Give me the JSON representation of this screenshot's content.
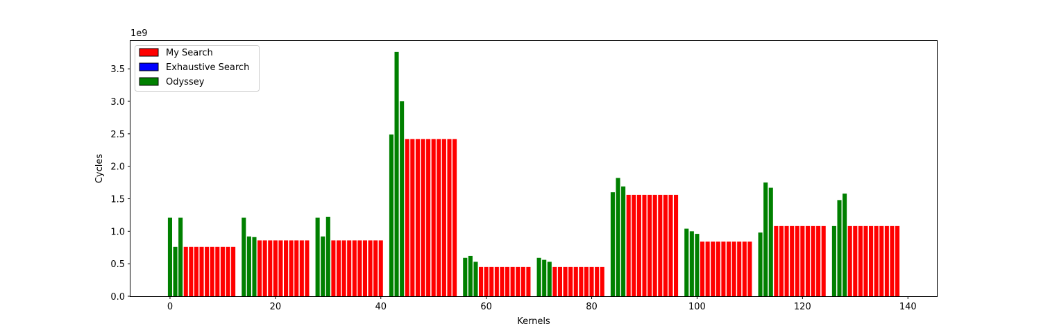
{
  "chart_data": {
    "type": "bar",
    "title": "",
    "xlabel": "Kernels",
    "ylabel": "Cycles",
    "y_offset_text": "1e9",
    "xlim": [
      -7.5,
      145.5
    ],
    "ylim": [
      0,
      3.94
    ],
    "x_ticks": [
      0,
      20,
      40,
      60,
      80,
      100,
      120,
      140
    ],
    "y_ticks": [
      0.0,
      0.5,
      1.0,
      1.5,
      2.0,
      2.5,
      3.0,
      3.5
    ],
    "x_tick_labels": [
      "0",
      "20",
      "40",
      "60",
      "80",
      "100",
      "120",
      "140"
    ],
    "y_tick_labels": [
      "0.0",
      "0.5",
      "1.0",
      "1.5",
      "2.0",
      "2.5",
      "3.0",
      "3.5"
    ],
    "grid": false,
    "legend_position": "top-left",
    "series": [
      {
        "name": "My Search",
        "color": "#ff0000",
        "x": [
          3,
          4,
          5,
          6,
          7,
          8,
          9,
          10,
          11,
          12,
          17,
          18,
          19,
          20,
          21,
          22,
          23,
          24,
          25,
          26,
          31,
          32,
          33,
          34,
          35,
          36,
          37,
          38,
          39,
          40,
          45,
          46,
          47,
          48,
          49,
          50,
          51,
          52,
          53,
          54,
          59,
          60,
          61,
          62,
          63,
          64,
          65,
          66,
          67,
          68,
          73,
          74,
          75,
          76,
          77,
          78,
          79,
          80,
          81,
          82,
          87,
          88,
          89,
          90,
          91,
          92,
          93,
          94,
          95,
          96,
          101,
          102,
          103,
          104,
          105,
          106,
          107,
          108,
          109,
          110,
          115,
          116,
          117,
          118,
          119,
          120,
          121,
          122,
          123,
          124,
          129,
          130,
          131,
          132,
          133,
          134,
          135,
          136,
          137,
          138
        ],
        "values": [
          0.76,
          0.76,
          0.76,
          0.76,
          0.76,
          0.76,
          0.76,
          0.76,
          0.76,
          0.76,
          0.86,
          0.86,
          0.86,
          0.86,
          0.86,
          0.86,
          0.86,
          0.86,
          0.86,
          0.86,
          0.86,
          0.86,
          0.86,
          0.86,
          0.86,
          0.86,
          0.86,
          0.86,
          0.86,
          0.86,
          2.42,
          2.42,
          2.42,
          2.42,
          2.42,
          2.42,
          2.42,
          2.42,
          2.42,
          2.42,
          0.45,
          0.45,
          0.45,
          0.45,
          0.45,
          0.45,
          0.45,
          0.45,
          0.45,
          0.45,
          0.45,
          0.45,
          0.45,
          0.45,
          0.45,
          0.45,
          0.45,
          0.45,
          0.45,
          0.45,
          1.56,
          1.56,
          1.56,
          1.56,
          1.56,
          1.56,
          1.56,
          1.56,
          1.56,
          1.56,
          0.84,
          0.84,
          0.84,
          0.84,
          0.84,
          0.84,
          0.84,
          0.84,
          0.84,
          0.84,
          1.08,
          1.08,
          1.08,
          1.08,
          1.08,
          1.08,
          1.08,
          1.08,
          1.08,
          1.08,
          1.08,
          1.08,
          1.08,
          1.08,
          1.08,
          1.08,
          1.08,
          1.08,
          1.08,
          1.08
        ]
      },
      {
        "name": "Exhaustive Search",
        "color": "#0000ff",
        "x": [],
        "values": []
      },
      {
        "name": "Odyssey",
        "color": "#008000",
        "x": [
          0,
          1,
          2,
          14,
          15,
          16,
          28,
          29,
          30,
          42,
          43,
          44,
          56,
          57,
          58,
          70,
          71,
          72,
          84,
          85,
          86,
          98,
          99,
          100,
          112,
          113,
          114,
          126,
          127,
          128
        ],
        "values": [
          1.21,
          0.76,
          1.21,
          1.21,
          0.92,
          0.91,
          1.21,
          0.92,
          1.22,
          2.49,
          3.76,
          3.0,
          0.59,
          0.62,
          0.53,
          0.59,
          0.56,
          0.53,
          1.6,
          1.82,
          1.69,
          1.04,
          1.0,
          0.96,
          0.98,
          1.75,
          1.67,
          1.08,
          1.48,
          1.58
        ]
      }
    ]
  }
}
